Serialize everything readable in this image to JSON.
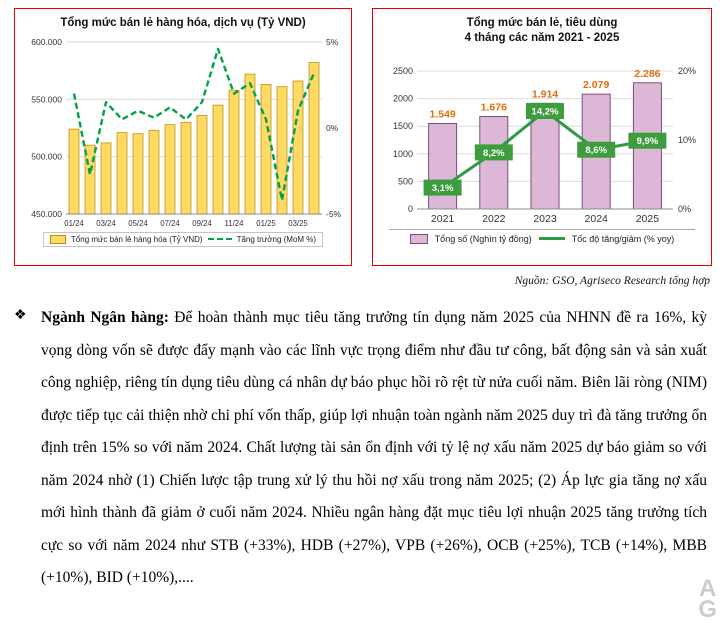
{
  "chart_data": [
    {
      "type": "bar+line",
      "title": "Tổng mức bán lẻ hàng hóa, dịch vụ (Tỷ VND)",
      "categories": [
        "01/24",
        "02/24",
        "03/24",
        "04/24",
        "05/24",
        "06/24",
        "07/24",
        "08/24",
        "09/24",
        "10/24",
        "11/24",
        "12/24",
        "01/25",
        "02/25",
        "03/25",
        "04/25"
      ],
      "x_tick_labels": [
        "01/24",
        "03/24",
        "05/24",
        "07/24",
        "09/24",
        "11/24",
        "01/25",
        "03/25"
      ],
      "bar_series": {
        "name": "Tổng mức bán lẻ hàng hóa (Tỷ VND)",
        "values": [
          524000,
          510000,
          512000,
          521000,
          520000,
          523000,
          528000,
          530000,
          536000,
          545000,
          558000,
          572000,
          563000,
          561000,
          566000,
          582000
        ],
        "color": "#FFD966",
        "stroke": "#BF8F00"
      },
      "line_series": {
        "name": "Tăng trưởng (MoM %)",
        "values": [
          2.0,
          -2.7,
          1.5,
          0.5,
          1.0,
          0.6,
          1.2,
          0.5,
          1.5,
          4.6,
          2.0,
          2.6,
          0.5,
          -4.2,
          1.0,
          3.2
        ],
        "color": "#00A14B",
        "style": "dashed"
      },
      "left_axis": {
        "min": 450000,
        "max": 600000,
        "tick_values": [
          450000,
          500000,
          550000,
          600000
        ],
        "tick_labels": [
          "450.000",
          "500.000",
          "550.000",
          "600.000"
        ]
      },
      "right_axis": {
        "min": -5,
        "max": 5,
        "tick_values": [
          -5,
          0,
          5
        ],
        "tick_labels": [
          "-5%",
          "0%",
          "5%"
        ]
      },
      "grid": true,
      "legend_position": "bottom"
    },
    {
      "type": "bar+line",
      "title": "Tổng mức bán lẻ, tiêu dùng 4 tháng các năm 2021 - 2025",
      "title_lines": [
        "Tổng mức bán lẻ, tiêu dùng",
        "4 tháng các năm 2021 - 2025"
      ],
      "categories": [
        "2021",
        "2022",
        "2023",
        "2024",
        "2025"
      ],
      "bar_series": {
        "name": "Tổng số (Nghìn tỷ đồng)",
        "values": [
          1549,
          1676,
          1914,
          2079,
          2286
        ],
        "labels": [
          "1.549",
          "1.676",
          "1.914",
          "2.079",
          "2.286"
        ],
        "label_color": "#E36C0A",
        "color": "#DDB8D6",
        "stroke": "#7A4E7A"
      },
      "line_series": {
        "name": "Tốc độ tăng/giảm (% yoy)",
        "values": [
          3.1,
          8.2,
          14.2,
          8.6,
          9.9
        ],
        "labels": [
          "3,1%",
          "8,2%",
          "14,2%",
          "8,6%",
          "9,9%"
        ],
        "color": "#2E9B44",
        "box_color": "#3D9C3D"
      },
      "left_axis": {
        "min": 0,
        "max": 2500,
        "tick_values": [
          0,
          500,
          1000,
          1500,
          2000,
          2500
        ],
        "tick_labels": [
          "0",
          "500",
          "1000",
          "1500",
          "2000",
          "2500"
        ]
      },
      "right_axis": {
        "min": 0,
        "max": 20,
        "tick_values": [
          0,
          10,
          20
        ],
        "tick_labels": [
          "0%",
          "10%",
          "20%"
        ]
      },
      "grid": true,
      "legend_position": "bottom"
    }
  ],
  "source_note": "Nguồn: GSO, Agriseco Research tổng hợp",
  "paragraph": {
    "bullet": "❖",
    "lead": "Ngành Ngân hàng:",
    "body": " Để hoàn thành mục tiêu tăng trưởng tín dụng năm 2025 của NHNN đề ra 16%, kỳ vọng dòng vốn sẽ được đẩy mạnh vào các lĩnh vực trọng điểm như đầu tư công, bất động sản và sản xuất công nghiệp, riêng tín dụng tiêu dùng cá nhân dự báo phục hồi rõ rệt từ nửa cuối năm. Biên lãi ròng (NIM) được tiếp tục cải thiện nhờ chi phí vốn thấp, giúp lợi nhuận toàn ngành năm 2025 duy trì đà tăng trưởng ổn định trên 15% so với năm 2024. Chất lượng tài sản ổn định với tỷ lệ nợ xấu năm 2025 dự báo giảm so với năm 2024 nhờ (1) Chiến lược tập trung xử lý thu hồi nợ xấu trong năm 2025; (2) Áp lực gia tăng nợ xấu mới hình thành đã giảm ở cuối năm 2024. Nhiều ngân hàng đặt mục tiêu lợi nhuận 2025 tăng trưởng tích cực so với năm 2024 như STB (+33%), HDB (+27%), VPB (+26%), OCB (+25%), TCB (+14%), MBB (+10%), BID (+10%),...."
  },
  "watermark": {
    "letters": [
      "A",
      "G"
    ]
  }
}
